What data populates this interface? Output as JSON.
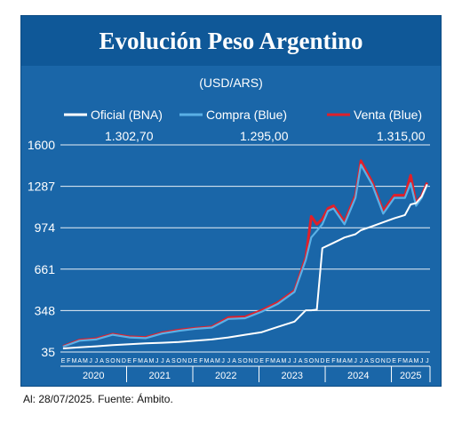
{
  "chart_data": {
    "type": "line",
    "title": "Evolución Peso Argentino",
    "subtitle": "(USD/ARS)",
    "yticks": [
      "1600",
      "1287",
      "974",
      "661",
      "348",
      "35"
    ],
    "ylim": [
      35,
      1600
    ],
    "grid": true,
    "legend_position": "top",
    "x_month_labels": [
      "E",
      "F",
      "M",
      "A",
      "M",
      "J",
      "J",
      "A",
      "S",
      "O",
      "N",
      "D"
    ],
    "x_month_labels_2025": [
      "E",
      "F",
      "M",
      "A",
      "M",
      "J",
      "J"
    ],
    "x_years": [
      "2020",
      "2021",
      "2022",
      "2023",
      "2024",
      "2025"
    ],
    "x": [
      "2020-01",
      "2020-04",
      "2020-07",
      "2020-10",
      "2021-01",
      "2021-04",
      "2021-07",
      "2021-10",
      "2022-01",
      "2022-04",
      "2022-07",
      "2022-10",
      "2023-01",
      "2023-04",
      "2023-07",
      "2023-09",
      "2023-10",
      "2023-11",
      "2023-12",
      "2024-01",
      "2024-02",
      "2024-04",
      "2024-06",
      "2024-07",
      "2024-09",
      "2024-11",
      "2025-01",
      "2025-03",
      "2025-04",
      "2025-05",
      "2025-06",
      "2025-07"
    ],
    "series": [
      {
        "name": "Oficial (BNA)",
        "color": "#ffffff",
        "last_value": "1.302,70",
        "values": [
          62,
          70,
          78,
          87,
          94,
          100,
          105,
          110,
          120,
          130,
          145,
          165,
          185,
          225,
          265,
          350,
          350,
          355,
          820,
          840,
          860,
          900,
          925,
          955,
          985,
          1015,
          1045,
          1070,
          1150,
          1160,
          1210,
          1302
        ]
      },
      {
        "name": "Compra (Blue)",
        "color": "#5ab0e6",
        "last_value": "1.295,00",
        "values": [
          75,
          120,
          130,
          165,
          145,
          140,
          175,
          195,
          210,
          220,
          285,
          290,
          340,
          400,
          490,
          730,
          900,
          950,
          1000,
          1100,
          1120,
          1000,
          1200,
          1450,
          1300,
          1080,
          1200,
          1200,
          1310,
          1140,
          1200,
          1295
        ]
      },
      {
        "name": "Venta (Blue)",
        "color": "#e0202a",
        "last_value": "1.315,00",
        "values": [
          78,
          125,
          135,
          170,
          150,
          145,
          180,
          200,
          215,
          225,
          295,
          300,
          350,
          410,
          500,
          750,
          1060,
          1000,
          1040,
          1120,
          1140,
          1020,
          1220,
          1480,
          1320,
          1100,
          1220,
          1220,
          1370,
          1160,
          1215,
          1315
        ]
      }
    ]
  },
  "unit_label": "(USD/ARS)",
  "footer": "Al: 28/07/2025. Fuente: Ámbito."
}
